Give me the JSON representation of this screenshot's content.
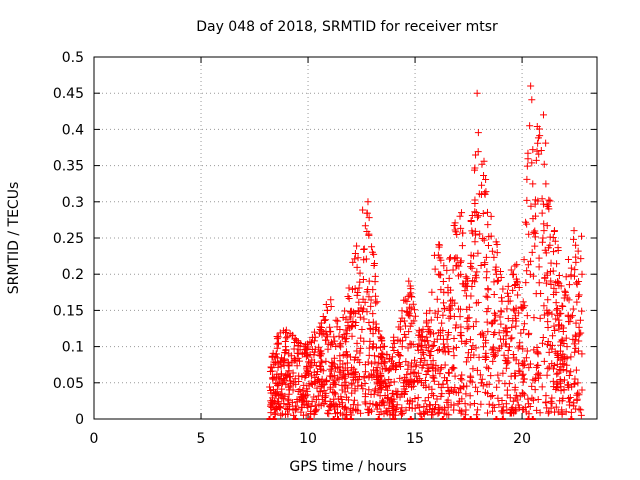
{
  "chart_data": {
    "type": "scatter",
    "title": "Day 048 of 2018, SRMTID for receiver mtsr",
    "xlabel": "GPS time / hours",
    "ylabel": "SRMTID / TECUs",
    "xlim": [
      0,
      23.5
    ],
    "ylim": [
      0,
      0.5
    ],
    "xticks": [
      "0",
      "5",
      "10",
      "15",
      "20"
    ],
    "xtick_values": [
      0,
      5,
      10,
      15,
      20
    ],
    "yticks": [
      "0",
      "0.05",
      "0.1",
      "0.15",
      "0.2",
      "0.25",
      "0.3",
      "0.35",
      "0.4",
      "0.45",
      "0.5"
    ],
    "ytick_values": [
      0,
      0.05,
      0.1,
      0.15,
      0.2,
      0.25,
      0.3,
      0.35,
      0.4,
      0.45,
      0.5
    ],
    "grid": true,
    "marker": "+",
    "color": "#ff0000",
    "envelope": {
      "x": [
        8.2,
        8.5,
        9.0,
        9.5,
        10.0,
        10.5,
        11.0,
        11.5,
        12.0,
        12.5,
        12.9,
        13.3,
        13.7,
        14.2,
        14.7,
        15.2,
        15.7,
        16.0,
        16.5,
        17.0,
        17.5,
        17.9,
        18.3,
        18.7,
        19.2,
        19.7,
        20.0,
        20.4,
        20.7,
        21.0,
        21.3,
        21.6,
        22.0,
        22.5,
        22.8
      ],
      "y": [
        0.07,
        0.11,
        0.12,
        0.11,
        0.1,
        0.12,
        0.17,
        0.12,
        0.2,
        0.28,
        0.31,
        0.12,
        0.09,
        0.12,
        0.2,
        0.12,
        0.16,
        0.25,
        0.2,
        0.32,
        0.21,
        0.46,
        0.33,
        0.27,
        0.16,
        0.24,
        0.15,
        0.47,
        0.4,
        0.44,
        0.3,
        0.24,
        0.2,
        0.27,
        0.25
      ]
    },
    "points": [
      [
        8.4,
        0.075
      ],
      [
        8.8,
        0.05
      ],
      [
        9.1,
        0.09
      ],
      [
        9.3,
        0.04
      ],
      [
        9.6,
        0.08
      ],
      [
        9.9,
        0.06
      ],
      [
        10.3,
        0.12
      ],
      [
        10.6,
        0.09
      ],
      [
        10.9,
        0.15
      ],
      [
        11.2,
        0.05
      ],
      [
        11.6,
        0.04
      ],
      [
        12.2,
        0.18
      ],
      [
        12.6,
        0.22
      ],
      [
        12.8,
        0.3
      ],
      [
        13.4,
        0.06
      ],
      [
        13.9,
        0.08
      ],
      [
        14.4,
        0.1
      ],
      [
        14.8,
        0.18
      ],
      [
        15.3,
        0.05
      ],
      [
        15.8,
        0.1
      ],
      [
        16.1,
        0.2
      ],
      [
        16.6,
        0.15
      ],
      [
        17.1,
        0.28
      ],
      [
        17.4,
        0.17
      ],
      [
        17.9,
        0.45
      ],
      [
        18.1,
        0.31
      ],
      [
        18.4,
        0.18
      ],
      [
        18.8,
        0.2
      ],
      [
        19.3,
        0.12
      ],
      [
        19.6,
        0.2
      ],
      [
        20.1,
        0.08
      ],
      [
        20.4,
        0.46
      ],
      [
        20.7,
        0.37
      ],
      [
        21.0,
        0.42
      ],
      [
        21.3,
        0.24
      ],
      [
        21.7,
        0.13
      ],
      [
        22.1,
        0.1
      ],
      [
        22.5,
        0.24
      ],
      [
        22.8,
        0.2
      ],
      [
        22.8,
        0.04
      ]
    ],
    "zero_points_x": [
      8.2,
      8.4,
      9.4,
      10.1,
      11.2,
      11.4,
      11.8,
      12.0,
      13.3,
      14.0,
      14.8,
      15.3,
      16.3,
      17.3,
      17.6,
      17.9,
      18.8,
      19.1,
      20.3,
      20.5,
      22.3
    ]
  }
}
